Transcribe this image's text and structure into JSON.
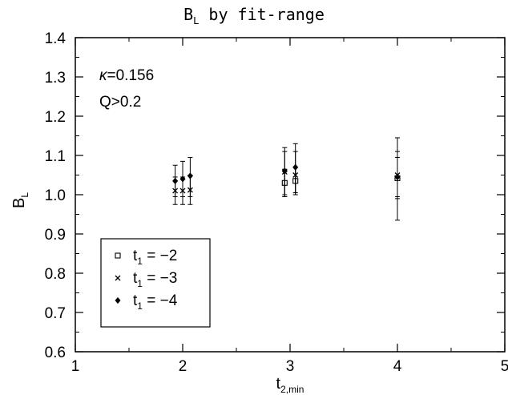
{
  "chart_data": {
    "type": "scatter",
    "title": "B",
    "title_sub": "L",
    "title_rest": " by fit-range",
    "xlabel": "t",
    "xlabel_sub": "2,min",
    "ylabel": "B",
    "ylabel_sub": "L",
    "xlim": [
      1,
      5
    ],
    "ylim": [
      0.6,
      1.4
    ],
    "xticks": [
      1,
      2,
      3,
      4,
      5
    ],
    "xtick_labels": [
      "1",
      "2",
      "3",
      "4",
      "5"
    ],
    "yticks": [
      0.6,
      0.7,
      0.8,
      0.9,
      1.0,
      1.1,
      1.2,
      1.3,
      1.4
    ],
    "ytick_labels": [
      "0.6",
      "0.7",
      "0.8",
      "0.9",
      "1.0",
      "1.1",
      "1.2",
      "1.3",
      "1.4"
    ],
    "annotations": [
      {
        "symbol": "κ",
        "text": "=0.156"
      },
      {
        "symbol": "",
        "text": "Q>0.2"
      }
    ],
    "legend_position": "bottom-left",
    "series": [
      {
        "name": "t1 = −2",
        "label_main": "t",
        "label_sub": "1",
        "label_rest": " = −2",
        "marker": "square",
        "points": [
          {
            "x": 2.95,
            "y": 1.03,
            "ylo": 0.995,
            "yhi": 1.065
          },
          {
            "x": 3.05,
            "y": 1.035,
            "ylo": 1.0,
            "yhi": 1.07
          },
          {
            "x": 4.0,
            "y": 1.042,
            "ylo": 0.99,
            "yhi": 1.095
          }
        ]
      },
      {
        "name": "t1 = −3",
        "label_main": "t",
        "label_sub": "1",
        "label_rest": " = −3",
        "marker": "cross",
        "points": [
          {
            "x": 1.93,
            "y": 1.01,
            "ylo": 0.975,
            "yhi": 1.045
          },
          {
            "x": 2.0,
            "y": 1.01,
            "ylo": 0.975,
            "yhi": 1.045
          },
          {
            "x": 2.07,
            "y": 1.012,
            "ylo": 0.975,
            "yhi": 1.05
          },
          {
            "x": 2.95,
            "y": 1.058,
            "ylo": 1.0,
            "yhi": 1.11
          },
          {
            "x": 3.05,
            "y": 1.05,
            "ylo": 1.0,
            "yhi": 1.11
          },
          {
            "x": 4.0,
            "y": 1.05,
            "ylo": 0.995,
            "yhi": 1.11
          }
        ]
      },
      {
        "name": "t1 = −4",
        "label_main": "t",
        "label_sub": "1",
        "label_rest": " = −4",
        "marker": "diamond",
        "points": [
          {
            "x": 1.93,
            "y": 1.035,
            "ylo": 0.995,
            "yhi": 1.075
          },
          {
            "x": 2.0,
            "y": 1.04,
            "ylo": 0.995,
            "yhi": 1.085
          },
          {
            "x": 2.07,
            "y": 1.048,
            "ylo": 0.995,
            "yhi": 1.095
          },
          {
            "x": 2.95,
            "y": 1.06,
            "ylo": 0.995,
            "yhi": 1.12
          },
          {
            "x": 3.05,
            "y": 1.07,
            "ylo": 1.005,
            "yhi": 1.13
          },
          {
            "x": 4.0,
            "y": 1.045,
            "ylo": 0.935,
            "yhi": 1.145
          }
        ]
      }
    ]
  }
}
